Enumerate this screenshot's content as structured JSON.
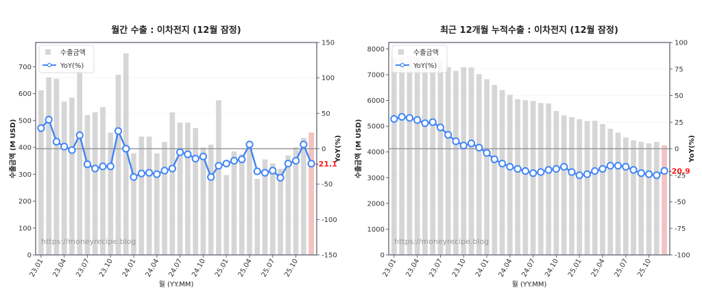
{
  "chart_data": [
    {
      "type": "bar",
      "title": "월간 수출 : 이차전지 (12월 잠정)",
      "xlabel": "월 (YY.MM)",
      "ylabel": "수출금액 (M USD)",
      "y2label": "YoY(%)",
      "ylim": [
        0,
        790
      ],
      "y2lim": [
        -150,
        150
      ],
      "yticks": [
        0,
        100,
        200,
        300,
        400,
        500,
        600,
        700
      ],
      "y2ticks": [
        -150,
        -100,
        -50,
        0,
        50,
        100,
        150
      ],
      "xtick_labels": [
        "23.01",
        "23.04",
        "23.07",
        "23.10",
        "24.01",
        "24.04",
        "24.07",
        "24.10",
        "25.01",
        "25.04",
        "25.07",
        "25.10"
      ],
      "legend": [
        "수출금액",
        "YoY(%)"
      ],
      "watermark": "https://moneyrecipe.blog",
      "last_label": "-21.1",
      "categories": [
        "23.01",
        "23.02",
        "23.03",
        "23.04",
        "23.05",
        "23.06",
        "23.07",
        "23.08",
        "23.09",
        "23.10",
        "23.11",
        "23.12",
        "24.01",
        "24.02",
        "24.03",
        "24.04",
        "24.05",
        "24.06",
        "24.07",
        "24.08",
        "24.09",
        "24.10",
        "24.11",
        "24.12",
        "25.01",
        "25.02",
        "25.03",
        "25.04",
        "25.05",
        "25.06",
        "25.07",
        "25.08",
        "25.09",
        "25.10",
        "25.11",
        "25.12"
      ],
      "series": [
        {
          "name": "수출금액",
          "type": "bar",
          "axis": "left",
          "values": [
            612,
            660,
            655,
            570,
            585,
            705,
            520,
            530,
            550,
            455,
            670,
            750,
            378,
            440,
            440,
            378,
            420,
            530,
            492,
            492,
            472,
            400,
            410,
            575,
            297,
            385,
            375,
            400,
            283,
            355,
            340,
            320,
            370,
            400,
            435,
            455
          ]
        },
        {
          "name": "YoY(%)",
          "type": "line",
          "axis": "right",
          "values": [
            29,
            41,
            10,
            3,
            -2,
            19,
            -22,
            -28,
            -25,
            -25,
            25,
            0,
            -40,
            -35,
            -34,
            -36,
            -31,
            -28,
            -5,
            -8,
            -14,
            -11,
            -40,
            -24,
            -21,
            -17,
            -15,
            6,
            -32,
            -34,
            -31,
            -41,
            -21,
            -17,
            6,
            -21.1
          ]
        }
      ],
      "grid": "horizontal dashed",
      "legend_position": "upper left"
    },
    {
      "type": "bar",
      "title": "최근 12개월 누적수출 : 이차전지 (12월 잠정)",
      "xlabel": "월 (YY.MM)",
      "ylabel": "수출금액 (M USD)",
      "y2label": "YoY(%)",
      "ylim": [
        0,
        8250
      ],
      "y2lim": [
        -100,
        100
      ],
      "yticks": [
        0,
        1000,
        2000,
        3000,
        4000,
        5000,
        6000,
        7000,
        8000
      ],
      "y2ticks": [
        -100,
        -75,
        -50,
        -25,
        0,
        25,
        50,
        75,
        100
      ],
      "xtick_labels": [
        "23.01",
        "23.04",
        "23.07",
        "23.10",
        "24.01",
        "24.04",
        "24.07",
        "24.10",
        "25.01",
        "25.04",
        "25.07",
        "25.10"
      ],
      "legend": [
        "수출금액",
        "YoY(%)"
      ],
      "watermark": "https://moneyrecipe.blog",
      "last_label": "-20.9",
      "categories": [
        "23.01",
        "23.02",
        "23.03",
        "23.04",
        "23.05",
        "23.06",
        "23.07",
        "23.08",
        "23.09",
        "23.10",
        "23.11",
        "23.12",
        "24.01",
        "24.02",
        "24.03",
        "24.04",
        "24.05",
        "24.06",
        "24.07",
        "24.08",
        "24.09",
        "24.10",
        "24.11",
        "24.12",
        "25.01",
        "25.02",
        "25.03",
        "25.04",
        "25.05",
        "25.06",
        "25.07",
        "25.08",
        "25.09",
        "25.10",
        "25.11",
        "25.12"
      ],
      "series": [
        {
          "name": "수출금액",
          "type": "bar",
          "axis": "left",
          "values": [
            7650,
            7700,
            7730,
            7650,
            7600,
            7700,
            7500,
            7300,
            7150,
            7290,
            7280,
            7020,
            6820,
            6600,
            6400,
            6220,
            6050,
            6010,
            5980,
            5900,
            5880,
            5590,
            5420,
            5350,
            5270,
            5200,
            5210,
            5080,
            4900,
            4750,
            4560,
            4450,
            4390,
            4330,
            4390,
            4260
          ]
        },
        {
          "name": "YoY(%)",
          "type": "line",
          "axis": "right",
          "values": [
            28,
            30,
            29,
            27,
            24,
            25,
            20,
            13,
            7,
            3,
            5,
            1,
            -4,
            -10,
            -14,
            -17,
            -19,
            -21,
            -23,
            -22,
            -20,
            -19,
            -17,
            -22,
            -25,
            -24,
            -21,
            -19,
            -16,
            -16,
            -17,
            -20,
            -23,
            -24,
            -25,
            -20.9
          ]
        }
      ],
      "grid": "horizontal dashed",
      "legend_position": "upper left"
    }
  ],
  "colors": {
    "bar": "#d6d6d6",
    "bar_last": "#f4c2c2",
    "line": "#4285f4",
    "zero_line": "#999999",
    "axis": "#5a6270",
    "last_label": "#ff1a1a"
  }
}
